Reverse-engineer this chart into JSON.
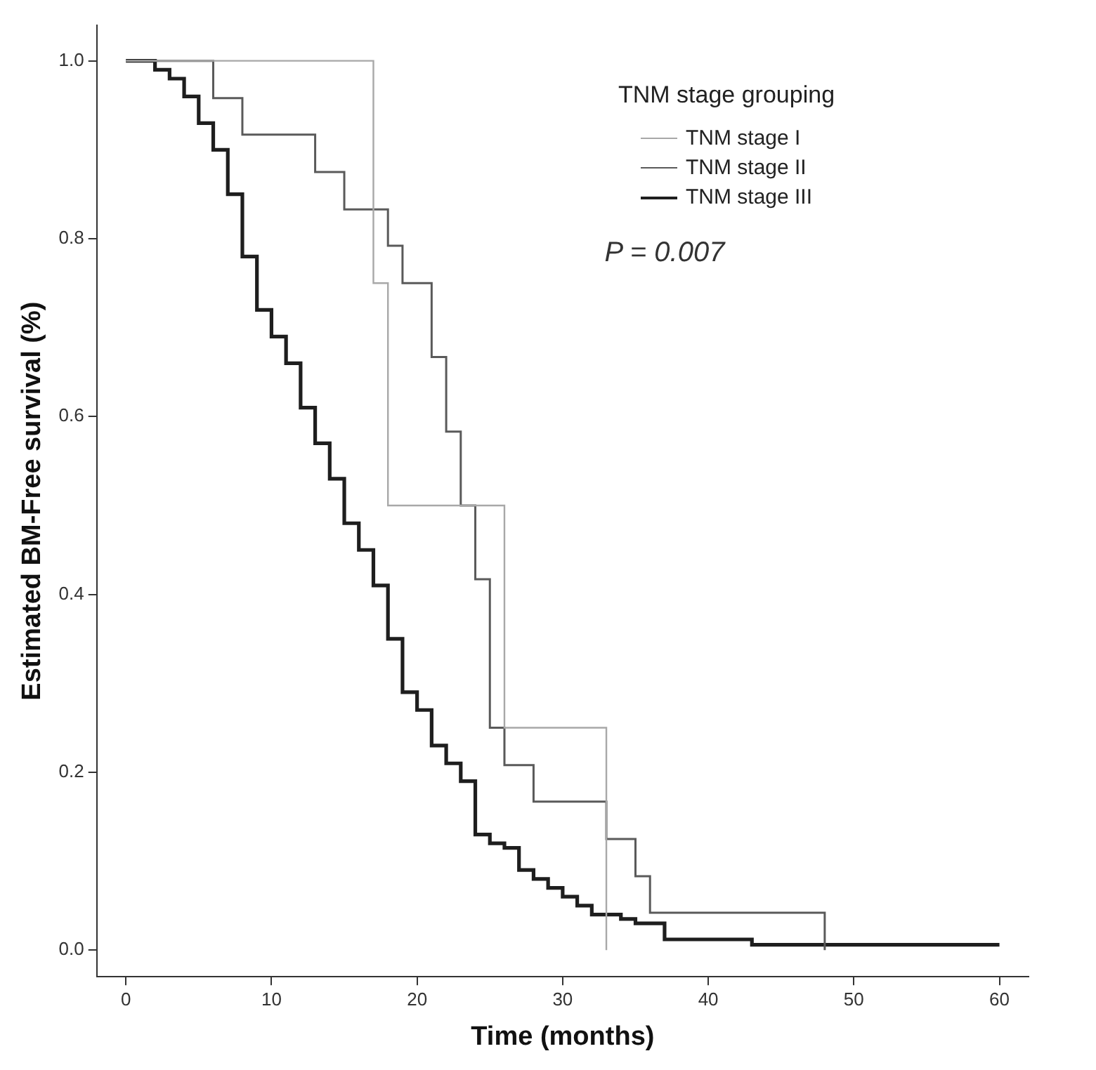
{
  "chart_data": {
    "type": "step",
    "xlabel": "Time (months)",
    "ylabel": "Estimated BM-Free survival (%)",
    "legend_title": "TNM stage grouping",
    "legend": "top right",
    "grid": false,
    "marker": "none",
    "line_style": "solid",
    "xlim": [
      -2,
      62
    ],
    "xticks": [
      0,
      10,
      20,
      30,
      40,
      50,
      60
    ],
    "ylim": [
      -0.03,
      1.04
    ],
    "yticks": [
      {
        "value": 0,
        "label": "0.0"
      },
      {
        "value": 0.2,
        "label": "0.2"
      },
      {
        "value": 0.4,
        "label": "0.4"
      },
      {
        "value": 0.6,
        "label": "0.6"
      },
      {
        "value": 0.8,
        "label": "0.8"
      },
      {
        "value": 1,
        "label": "1.0"
      }
    ],
    "annotations": [
      "P = 0.007"
    ],
    "series": [
      {
        "name": "TNM stage I",
        "color": "#a8a8a8",
        "x": [
          0,
          17,
          18,
          26,
          33
        ],
        "values": [
          1,
          0.75,
          0.5,
          0.25,
          0
        ]
      },
      {
        "name": "TNM stage II",
        "color": "#5a5a5a",
        "x": [
          0,
          6,
          8,
          13,
          15,
          18,
          19,
          21,
          22,
          23,
          24,
          25,
          26,
          28,
          33,
          35,
          36,
          48
        ],
        "values": [
          1,
          0.958,
          0.917,
          0.875,
          0.833,
          0.792,
          0.75,
          0.667,
          0.583,
          0.5,
          0.417,
          0.25,
          0.208,
          0.167,
          0.125,
          0.083,
          0.042,
          0
        ]
      },
      {
        "name": "TNM stage III",
        "color": "#1e1e1e",
        "x": [
          0,
          2,
          3,
          4,
          5,
          6,
          7,
          8,
          9,
          10,
          11,
          12,
          13,
          14,
          15,
          16,
          17,
          18,
          19,
          20,
          21,
          22,
          23,
          24,
          25,
          26,
          27,
          28,
          29,
          30,
          31,
          32,
          34,
          35,
          37,
          43,
          60
        ],
        "values": [
          1,
          0.99,
          0.98,
          0.96,
          0.93,
          0.9,
          0.85,
          0.78,
          0.72,
          0.69,
          0.66,
          0.61,
          0.57,
          0.53,
          0.48,
          0.45,
          0.41,
          0.35,
          0.29,
          0.27,
          0.23,
          0.21,
          0.19,
          0.13,
          0.12,
          0.115,
          0.09,
          0.08,
          0.07,
          0.06,
          0.05,
          0.04,
          0.035,
          0.03,
          0.012,
          0.006,
          0.006
        ]
      }
    ]
  }
}
